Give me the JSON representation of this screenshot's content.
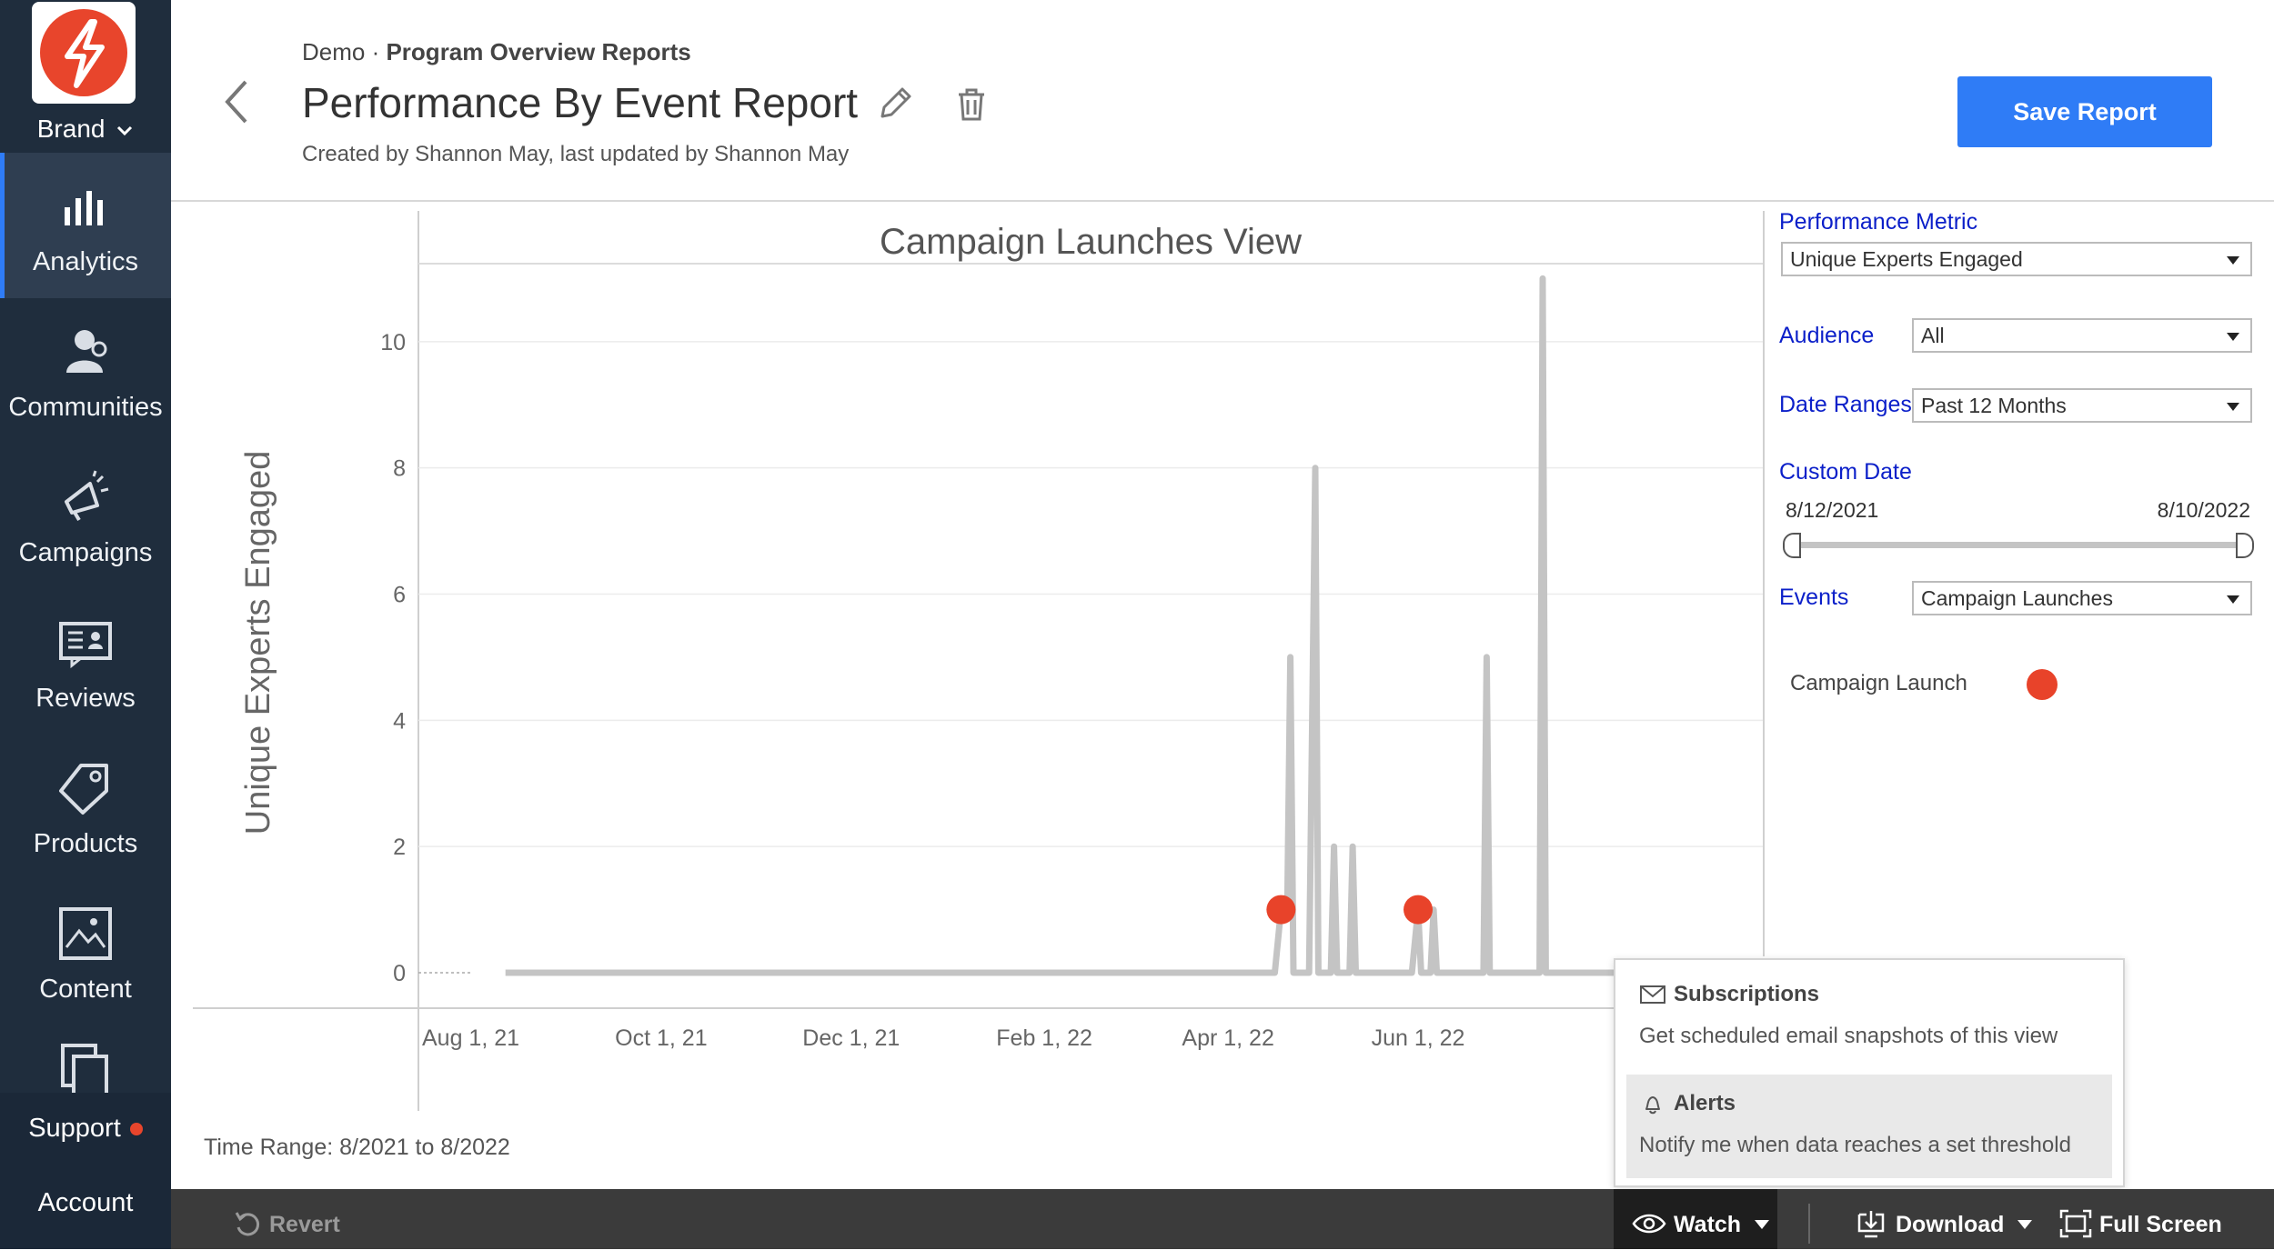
{
  "sidebar": {
    "brand_label": "Brand",
    "items": [
      {
        "label": "Analytics",
        "icon": "bar-chart-icon",
        "active": true
      },
      {
        "label": "Communities",
        "icon": "communities-icon",
        "active": false
      },
      {
        "label": "Campaigns",
        "icon": "megaphone-icon",
        "active": false
      },
      {
        "label": "Reviews",
        "icon": "review-card-icon",
        "active": false
      },
      {
        "label": "Products",
        "icon": "tag-icon",
        "active": false
      },
      {
        "label": "Content",
        "icon": "image-icon",
        "active": false
      }
    ],
    "support_label": "Support",
    "account_label": "Account",
    "accent_color": "#e8452c"
  },
  "header": {
    "breadcrumb_prefix": "Demo · ",
    "breadcrumb_section": "Program Overview Reports",
    "title": "Performance By Event Report",
    "subtitle": "Created by Shannon May, last updated by Shannon May",
    "save_label": "Save Report",
    "primary_color": "#2f7cf6"
  },
  "panel": {
    "performance_metric_label": "Performance Metric",
    "performance_metric_value": "Unique Experts Engaged",
    "audience_label": "Audience",
    "audience_value": "All",
    "date_ranges_label": "Date Ranges",
    "date_ranges_value": "Past 12 Months",
    "custom_date_label": "Custom Date",
    "custom_date_start": "8/12/2021",
    "custom_date_end": "8/10/2022",
    "events_label": "Events",
    "events_value": "Campaign Launches",
    "legend_label": "Campaign Launch",
    "legend_color": "#e8432a"
  },
  "chart_data": {
    "type": "line",
    "title": "Campaign Launches View",
    "xlabel": "",
    "ylabel": "Unique Experts Engaged",
    "x_tick_labels": [
      "Aug 1, 21",
      "Oct 1, 21",
      "Dec 1, 21",
      "Feb 1, 22",
      "Apr 1, 22",
      "Jun 1, 22"
    ],
    "y_tick_labels": [
      "0",
      "2",
      "4",
      "6",
      "8",
      "10"
    ],
    "ylim": [
      0,
      11.5
    ],
    "grid": true,
    "series": [
      {
        "color": "#c4c4c4",
        "points": [
          [
            "2021-08-12",
            0
          ],
          [
            "2022-04-16",
            0
          ],
          [
            "2022-04-18",
            1
          ],
          [
            "2022-04-20",
            1
          ],
          [
            "2022-04-21",
            5
          ],
          [
            "2022-04-22",
            0
          ],
          [
            "2022-04-27",
            0
          ],
          [
            "2022-04-29",
            8
          ],
          [
            "2022-04-30",
            0
          ],
          [
            "2022-05-04",
            0
          ],
          [
            "2022-05-05",
            2
          ],
          [
            "2022-05-06",
            0
          ],
          [
            "2022-05-10",
            0
          ],
          [
            "2022-05-11",
            2
          ],
          [
            "2022-05-12",
            0
          ],
          [
            "2022-05-30",
            0
          ],
          [
            "2022-06-01",
            1
          ],
          [
            "2022-06-02",
            0
          ],
          [
            "2022-06-05",
            0
          ],
          [
            "2022-06-06",
            1
          ],
          [
            "2022-06-07",
            0
          ],
          [
            "2022-06-22",
            0
          ],
          [
            "2022-06-23",
            5
          ],
          [
            "2022-06-24",
            0
          ],
          [
            "2022-07-10",
            0
          ],
          [
            "2022-07-11",
            11
          ],
          [
            "2022-07-12",
            0
          ],
          [
            "2022-08-10",
            0
          ]
        ]
      }
    ],
    "events": [
      {
        "name": "Campaign Launch",
        "x": "2022-04-18",
        "y": 1
      },
      {
        "name": "Campaign Launch",
        "x": "2022-06-01",
        "y": 1
      }
    ],
    "time_range_text": "Time Range: 8/2021 to 8/2022"
  },
  "watch_popup": {
    "subscriptions_title": "Subscriptions",
    "subscriptions_desc": "Get scheduled email snapshots of this view",
    "alerts_title": "Alerts",
    "alerts_desc": "Notify me when data reaches a set threshold"
  },
  "toolbar": {
    "revert_label": "Revert",
    "watch_label": "Watch",
    "download_label": "Download",
    "fullscreen_label": "Full Screen"
  }
}
